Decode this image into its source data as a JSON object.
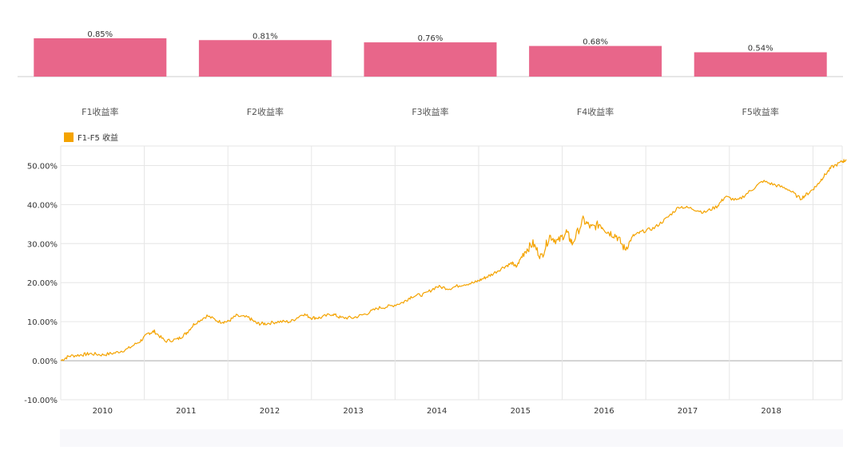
{
  "chart_data": [
    {
      "type": "bar",
      "categories": [
        "F1收益率",
        "F2收益率",
        "F3收益率",
        "F4收益率",
        "F5收益率"
      ],
      "values": [
        0.85,
        0.81,
        0.76,
        0.68,
        0.54
      ],
      "value_labels": [
        "0.85%",
        "0.81%",
        "0.76%",
        "0.68%",
        "0.54%"
      ],
      "ylim": [
        0,
        0.85
      ],
      "bar_color": "#e8668a",
      "grid": false
    },
    {
      "type": "line",
      "legend": {
        "position": "top-left",
        "entries": [
          "F1-F5 收益"
        ]
      },
      "series": [
        {
          "name": "F1-F5 收益",
          "color": "#f4a300",
          "x": [
            2009.5,
            2009.6,
            2009.75,
            2009.85,
            2010.0,
            2010.15,
            2010.3,
            2010.45,
            2010.55,
            2010.62,
            2010.75,
            2010.9,
            2011.0,
            2011.1,
            2011.25,
            2011.4,
            2011.5,
            2011.6,
            2011.75,
            2011.85,
            2011.95,
            2012.1,
            2012.25,
            2012.4,
            2012.5,
            2012.6,
            2012.75,
            2012.85,
            2013.0,
            2013.15,
            2013.3,
            2013.45,
            2013.6,
            2013.7,
            2013.85,
            2014.0,
            2014.15,
            2014.3,
            2014.45,
            2014.55,
            2014.65,
            2014.8,
            2014.9,
            2014.95,
            2015.05,
            2015.15,
            2015.25,
            2015.35,
            2015.45,
            2015.55,
            2015.62,
            2015.75,
            2015.85,
            2015.95,
            2016.05,
            2016.15,
            2016.25,
            2016.35,
            2016.45,
            2016.6,
            2016.75,
            2016.9,
            2017.05,
            2017.2,
            2017.35,
            2017.45,
            2017.6,
            2017.75,
            2017.9,
            2018.05,
            2018.2,
            2018.35,
            2018.45,
            2018.55,
            2018.62,
            2018.72,
            2018.85,
            2018.9
          ],
          "y": [
            0.0,
            1.2,
            1.5,
            1.8,
            1.5,
            2.0,
            3.0,
            5.0,
            7.0,
            7.5,
            5.0,
            5.5,
            7.0,
            9.5,
            11.5,
            10.0,
            10.0,
            11.5,
            11.0,
            9.5,
            9.5,
            10.0,
            10.0,
            12.0,
            11.0,
            11.0,
            12.0,
            11.0,
            11.0,
            12.0,
            13.5,
            14.0,
            15.0,
            16.5,
            17.0,
            19.0,
            18.5,
            19.5,
            20.0,
            21.0,
            22.0,
            24.0,
            25.0,
            24.0,
            28.0,
            30.0,
            26.5,
            32.0,
            30.5,
            33.0,
            30.0,
            36.0,
            34.0,
            35.0,
            33.0,
            32.0,
            28.5,
            32.0,
            33.0,
            34.0,
            36.5,
            39.5,
            39.0,
            38.0,
            39.5,
            42.0,
            41.0,
            43.5,
            46.0,
            45.0,
            44.0,
            41.5,
            43.0,
            45.0,
            47.0,
            49.5,
            51.0,
            51.5
          ]
        }
      ],
      "xticks": [
        "2010",
        "2011",
        "2012",
        "2013",
        "2014",
        "2015",
        "2016",
        "2017",
        "2018"
      ],
      "ytick_labels": [
        "-10.00%",
        "0.00%",
        "10.00%",
        "20.00%",
        "30.00%",
        "40.00%",
        "50.00%"
      ],
      "ylim": [
        -10,
        55
      ],
      "grid": true
    }
  ]
}
